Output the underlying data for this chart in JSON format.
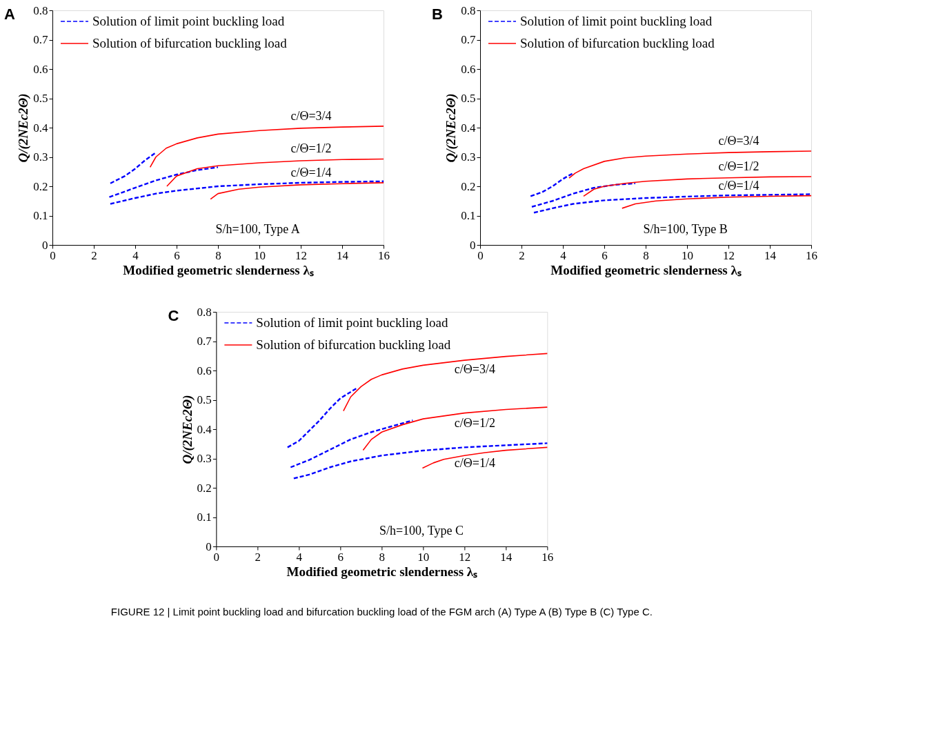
{
  "chart_data": [
    {
      "type": "line",
      "title": "A",
      "xlabel": "Modified geometric slenderness λₛ",
      "ylabel": "Q/(2NEc2Θ)",
      "xlim": [
        0,
        16
      ],
      "ylim": [
        0,
        0.8
      ],
      "xticks": [
        0,
        2,
        4,
        6,
        8,
        10,
        12,
        14,
        16
      ],
      "yticks": [
        0,
        0.1,
        0.2,
        0.3,
        0.4,
        0.5,
        0.6,
        0.7,
        0.8
      ],
      "grid": false,
      "legend": "top left",
      "marker": "none",
      "series": [
        {
          "name": "Solution of limit point buckling load",
          "color": "#0000ff",
          "line_style": "dashed",
          "x": [
            2.8,
            3.5,
            4.0,
            4.5,
            5.0
          ],
          "values": [
            0.21,
            0.235,
            0.26,
            0.29,
            0.315
          ]
        },
        {
          "name": "Solution of bifurcation buckling load",
          "color": "#ff0000",
          "line_style": "solid",
          "x": [
            4.72,
            5.0,
            5.5,
            6,
            7,
            8,
            10,
            12,
            14,
            16
          ],
          "values": [
            0.265,
            0.3,
            0.33,
            0.345,
            0.365,
            0.378,
            0.39,
            0.398,
            0.402,
            0.405
          ]
        },
        {
          "color": "#0000ff",
          "line_style": "dashed",
          "x": [
            2.75,
            4,
            5,
            6,
            7,
            8
          ],
          "values": [
            0.163,
            0.195,
            0.22,
            0.24,
            0.255,
            0.265
          ]
        },
        {
          "color": "#ff0000",
          "line_style": "solid",
          "x": [
            5.53,
            6,
            7,
            8,
            10,
            12,
            14,
            16
          ],
          "values": [
            0.2,
            0.235,
            0.26,
            0.27,
            0.28,
            0.287,
            0.291,
            0.293
          ]
        },
        {
          "color": "#0000ff",
          "line_style": "dashed",
          "x": [
            2.8,
            4,
            5,
            6,
            8,
            10,
            12,
            14,
            16
          ],
          "values": [
            0.14,
            0.16,
            0.175,
            0.185,
            0.2,
            0.207,
            0.212,
            0.215,
            0.217
          ]
        },
        {
          "color": "#ff0000",
          "line_style": "solid",
          "x": [
            7.64,
            8,
            9,
            10,
            12,
            14,
            16
          ],
          "values": [
            0.156,
            0.175,
            0.19,
            0.197,
            0.205,
            0.209,
            0.212
          ]
        }
      ],
      "annotations": [
        "c/Θ=3/4",
        "c/Θ=1/2",
        "c/Θ=1/4",
        "S/h=100, Type A"
      ]
    },
    {
      "type": "line",
      "title": "B",
      "xlabel": "Modified geometric slenderness λₛ",
      "ylabel": "Q/(2NEc2Θ)",
      "xlim": [
        0,
        16
      ],
      "ylim": [
        0,
        0.8
      ],
      "xticks": [
        0,
        2,
        4,
        6,
        8,
        10,
        12,
        14,
        16
      ],
      "yticks": [
        0,
        0.1,
        0.2,
        0.3,
        0.4,
        0.5,
        0.6,
        0.7,
        0.8
      ],
      "grid": false,
      "legend": "top left",
      "marker": "none",
      "series": [
        {
          "name": "Solution of limit point buckling load",
          "color": "#0000ff",
          "line_style": "dashed",
          "x": [
            2.44,
            3,
            3.5,
            4,
            4.5
          ],
          "values": [
            0.166,
            0.18,
            0.2,
            0.225,
            0.245
          ]
        },
        {
          "name": "Solution of bifurcation buckling load",
          "color": "#ff0000",
          "line_style": "solid",
          "x": [
            4.3,
            4.6,
            5,
            6,
            7,
            8,
            10,
            12,
            14,
            16
          ],
          "values": [
            0.228,
            0.245,
            0.26,
            0.285,
            0.297,
            0.303,
            0.31,
            0.315,
            0.318,
            0.32
          ]
        },
        {
          "color": "#0000ff",
          "line_style": "dashed",
          "x": [
            2.5,
            3.5,
            4.5,
            5.5,
            6.5,
            7.5
          ],
          "values": [
            0.13,
            0.15,
            0.175,
            0.195,
            0.205,
            0.21
          ]
        },
        {
          "color": "#ff0000",
          "line_style": "solid",
          "x": [
            5.0,
            5.5,
            6,
            7,
            8,
            10,
            12,
            14,
            16
          ],
          "values": [
            0.166,
            0.19,
            0.2,
            0.21,
            0.217,
            0.225,
            0.229,
            0.232,
            0.233
          ]
        },
        {
          "color": "#0000ff",
          "line_style": "dashed",
          "x": [
            2.6,
            3.5,
            4.5,
            6,
            8,
            10,
            12,
            14,
            16
          ],
          "values": [
            0.11,
            0.125,
            0.14,
            0.152,
            0.16,
            0.165,
            0.169,
            0.171,
            0.173
          ]
        },
        {
          "color": "#ff0000",
          "line_style": "solid",
          "x": [
            6.86,
            7.5,
            8.5,
            10,
            12,
            14,
            16
          ],
          "values": [
            0.125,
            0.14,
            0.15,
            0.157,
            0.163,
            0.166,
            0.168
          ]
        }
      ],
      "annotations": [
        "c/Θ=3/4",
        "c/Θ=1/2",
        "c/Θ=1/4",
        "S/h=100, Type B"
      ]
    },
    {
      "type": "line",
      "title": "C",
      "xlabel": "Modified geometric slenderness λₛ",
      "ylabel": "Q/(2NEc2Θ)",
      "xlim": [
        0,
        16
      ],
      "ylim": [
        0,
        0.8
      ],
      "xticks": [
        0,
        2,
        4,
        6,
        8,
        10,
        12,
        14,
        16
      ],
      "yticks": [
        0,
        0.1,
        0.2,
        0.3,
        0.4,
        0.5,
        0.6,
        0.7,
        0.8
      ],
      "grid": false,
      "legend": "top left",
      "marker": "none",
      "series": [
        {
          "name": "Solution of limit point buckling load",
          "color": "#0000ff",
          "line_style": "dashed",
          "x": [
            3.45,
            4,
            4.5,
            5,
            5.5,
            6,
            6.8
          ],
          "values": [
            0.338,
            0.36,
            0.395,
            0.43,
            0.47,
            0.505,
            0.54
          ]
        },
        {
          "name": "Solution of bifurcation buckling load",
          "color": "#ff0000",
          "line_style": "solid",
          "x": [
            6.15,
            6.5,
            7,
            7.5,
            8,
            9,
            10,
            12,
            14,
            16
          ],
          "values": [
            0.462,
            0.51,
            0.545,
            0.57,
            0.585,
            0.605,
            0.618,
            0.635,
            0.648,
            0.658
          ]
        },
        {
          "color": "#0000ff",
          "line_style": "dashed",
          "x": [
            3.6,
            4.5,
            5.5,
            6.5,
            7.5,
            8.5,
            9.5
          ],
          "values": [
            0.27,
            0.295,
            0.33,
            0.365,
            0.39,
            0.41,
            0.43
          ]
        },
        {
          "color": "#ff0000",
          "line_style": "solid",
          "x": [
            7.1,
            7.5,
            8,
            9,
            10,
            12,
            14,
            16
          ],
          "values": [
            0.328,
            0.365,
            0.39,
            0.415,
            0.435,
            0.455,
            0.467,
            0.475
          ]
        },
        {
          "color": "#0000ff",
          "line_style": "dashed",
          "x": [
            3.75,
            4.5,
            5.5,
            6.5,
            8,
            10,
            12,
            14,
            16
          ],
          "values": [
            0.232,
            0.245,
            0.27,
            0.29,
            0.31,
            0.327,
            0.338,
            0.345,
            0.352
          ]
        },
        {
          "color": "#ff0000",
          "line_style": "solid",
          "x": [
            9.97,
            10.5,
            11,
            12,
            13,
            14,
            16
          ],
          "values": [
            0.267,
            0.285,
            0.297,
            0.31,
            0.32,
            0.328,
            0.338
          ]
        }
      ],
      "annotations": [
        "c/Θ=3/4",
        "c/Θ=1/2",
        "c/Θ=1/4",
        "S/h=100, Type C",
        "FIGURE 12 | Limit point buckling load and bifurcation buckling load of the FGM arch (A) Type A (B) Type B (C) Type C."
      ]
    }
  ]
}
